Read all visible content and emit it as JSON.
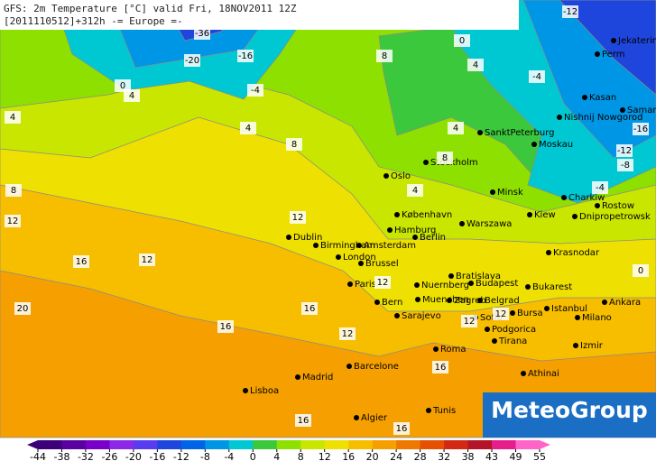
{
  "header": {
    "line1": "GFS: 2m Temperature [°C] valid Fri, 18NOV2011 12Z",
    "line2": "[2011110512]+312h -= Europe =-"
  },
  "logo": "MeteoGroup",
  "cities": [
    "Jekaterinburg",
    "Perm",
    "Kasan",
    "Nishnij Nowgorod",
    "Samara",
    "SanktPeterburg",
    "Moskau",
    "Oslo",
    "Stockholm",
    "Minsk",
    "Charkiw",
    "Rostow",
    "Kiew",
    "Dnipropetrowsk",
    "København",
    "Warszawa",
    "Hamburg",
    "Berlin",
    "Dublin",
    "Birmingham",
    "Amsterdam",
    "London",
    "Brussel",
    "Paris",
    "Krasnodar",
    "Bratislava",
    "Budapest",
    "Nuernberg",
    "Bukarest",
    "Muenchen",
    "Ankara",
    "Bern",
    "Zagreb",
    "Belgrad",
    "Istanbul",
    "Milano",
    "Sarajevo",
    "Sofia",
    "Bursa",
    "Podgorica",
    "Tirana",
    "Izmir",
    "Roma",
    "Barcelone",
    "Madrid",
    "Athinai",
    "Lisboa",
    "Tunis",
    "Algier"
  ],
  "contour_labels": [
    -36,
    -20,
    -16,
    -4,
    4,
    0,
    4,
    8,
    4,
    8,
    12,
    16,
    20,
    16,
    12,
    16,
    12,
    12,
    8,
    4,
    8,
    4,
    0,
    -4,
    -12,
    -16,
    -12,
    -8,
    -4,
    4,
    12,
    12,
    16,
    16,
    16,
    12,
    0
  ],
  "colorbar": {
    "ticks": [
      -44,
      -38,
      -32,
      -26,
      -20,
      -16,
      -12,
      -8,
      -4,
      0,
      4,
      8,
      12,
      16,
      20,
      24,
      28,
      32,
      38,
      43,
      49,
      55
    ],
    "colors": [
      "#3c0078",
      "#5a00a0",
      "#7800c8",
      "#8c28e6",
      "#5a3cf0",
      "#1e46dc",
      "#0064e6",
      "#0096e6",
      "#00c8d2",
      "#3cc83c",
      "#8ee000",
      "#c8e600",
      "#eee000",
      "#f7be00",
      "#f5a000",
      "#ee7800",
      "#e65000",
      "#d22814",
      "#b41428",
      "#e61e8c",
      "#ff64c8"
    ]
  }
}
